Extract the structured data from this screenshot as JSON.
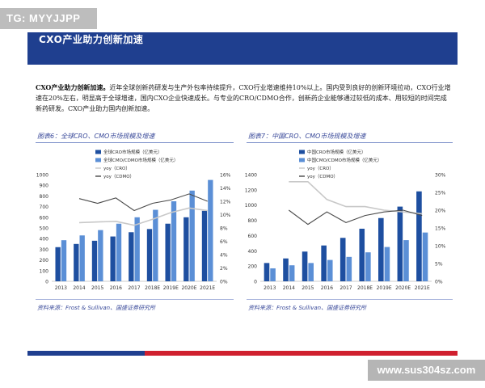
{
  "watermark_top": "TG: MYYJJPP",
  "watermark_bottom": "www.sus304sz.com",
  "banner_title": "CXO产业助力创新加速",
  "paragraph": {
    "lead": "CXO产业助力创新加速。",
    "body": "近年全球创新药研发与生产外包率持续提升，CXO行业增速维持10%以上。国内受到良好的创新环境拉动，CXO行业增速在20%左右，明显高于全球增速，国内CXO企业快速成长。与专业的CRO/CDMO合作，创新药企业能够通过较低的成本、用较短的时间完成新药研发。CXO产业助力国内创新加速。"
  },
  "colors": {
    "banner": "#1f3f8f",
    "dark_bar": "#1e4fa0",
    "light_bar": "#5b8fd6",
    "line_cro": "#c8c8c8",
    "line_cdmo": "#4a4a4a",
    "accent_red": "#d0202f"
  },
  "chart_data": [
    {
      "type": "bar",
      "title": "图表6：全球CRO、CMO市场规模及增速",
      "source": "资料来源：Frost & Sullivan、国盛证券研究所",
      "categories": [
        "2013",
        "2014",
        "2015",
        "2016",
        "2017",
        "2018E",
        "2019E",
        "2020E",
        "2021E"
      ],
      "series": [
        {
          "name": "全球CRO市场规模（亿美元）",
          "kind": "bar",
          "axis": "left",
          "values": [
            320,
            350,
            380,
            420,
            460,
            490,
            540,
            600,
            660
          ]
        },
        {
          "name": "全球CMO/CDMO市场规模（亿美元）",
          "kind": "bar",
          "axis": "left",
          "values": [
            385,
            430,
            480,
            540,
            600,
            670,
            750,
            850,
            950
          ]
        },
        {
          "name": "yoy（CRO）",
          "kind": "line",
          "axis": "right",
          "values": [
            null,
            8.8,
            8.9,
            9.0,
            8.4,
            9.3,
            10.3,
            11.0,
            10.6
          ]
        },
        {
          "name": "yoy（CDMO）",
          "kind": "line",
          "axis": "right",
          "values": [
            null,
            12.4,
            11.7,
            12.5,
            10.6,
            11.7,
            12.2,
            13.1,
            12.0
          ]
        }
      ],
      "ylim": [
        0,
        1000
      ],
      "yticks": [
        0,
        100,
        200,
        300,
        400,
        500,
        600,
        700,
        800,
        900,
        1000
      ],
      "y2lim": [
        0,
        16
      ],
      "y2ticks": [
        "0%",
        "2%",
        "4%",
        "6%",
        "8%",
        "10%",
        "12%",
        "14%",
        "16%"
      ],
      "legend": "top-left"
    },
    {
      "type": "bar",
      "title": "图表7：中国CRO、CMO市场规模及增速",
      "source": "资料来源：Frost & Sullivan、国盛证券研究所",
      "categories": [
        "2013",
        "2014",
        "2015",
        "2016",
        "2017",
        "2018E",
        "2019E",
        "2020E",
        "2021E"
      ],
      "series": [
        {
          "name": "中国CRO市场规模（亿美元）",
          "kind": "bar",
          "axis": "left",
          "values": [
            240,
            300,
            390,
            470,
            570,
            690,
            830,
            980,
            1180
          ]
        },
        {
          "name": "中国CMO/CDMO市场规模（亿美元）",
          "kind": "bar",
          "axis": "left",
          "values": [
            170,
            210,
            240,
            280,
            320,
            380,
            450,
            540,
            640
          ]
        },
        {
          "name": "yoy（CRO）",
          "kind": "line",
          "axis": "right",
          "values": [
            null,
            28,
            28,
            23,
            21,
            21,
            20,
            19.5,
            19
          ]
        },
        {
          "name": "yoy（CDMO）",
          "kind": "line",
          "axis": "right",
          "values": [
            null,
            20,
            16,
            19.5,
            16.5,
            18.5,
            19.5,
            20,
            18.5
          ]
        }
      ],
      "ylim": [
        0,
        1400
      ],
      "yticks": [
        0,
        200,
        400,
        600,
        800,
        1000,
        1200,
        1400
      ],
      "y2lim": [
        0,
        30
      ],
      "y2ticks": [
        "0%",
        "5%",
        "10%",
        "15%",
        "20%",
        "25%",
        "30%"
      ],
      "legend": "top-left"
    }
  ]
}
